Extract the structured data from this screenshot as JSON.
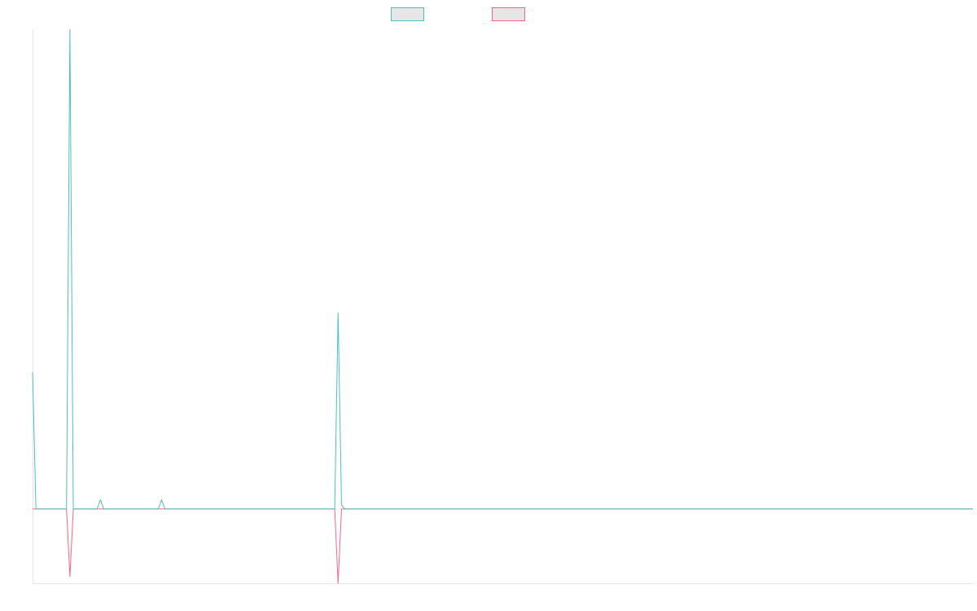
{
  "chart_data": {
    "type": "line",
    "xlim": [
      0,
      277
    ],
    "ylim": [
      -15.5,
      100
    ],
    "series": [
      {
        "color": "#ff6384",
        "x": [
          0,
          10,
          11,
          12,
          89,
          90,
          91,
          277
        ],
        "values": [
          0,
          0,
          -14.1,
          0,
          0,
          -15.5,
          0,
          0
        ]
      },
      {
        "color": "#4bc0c0",
        "x": [
          0,
          1,
          10,
          11,
          12,
          19,
          20,
          21,
          37,
          38,
          39,
          89,
          90,
          91,
          92,
          277
        ],
        "values": [
          28.5,
          0,
          0,
          100,
          0,
          0,
          1.9,
          0,
          0,
          1.9,
          0,
          0,
          40.9,
          0.8,
          0,
          0
        ]
      }
    ],
    "legend_order": [
      1,
      0
    ]
  }
}
